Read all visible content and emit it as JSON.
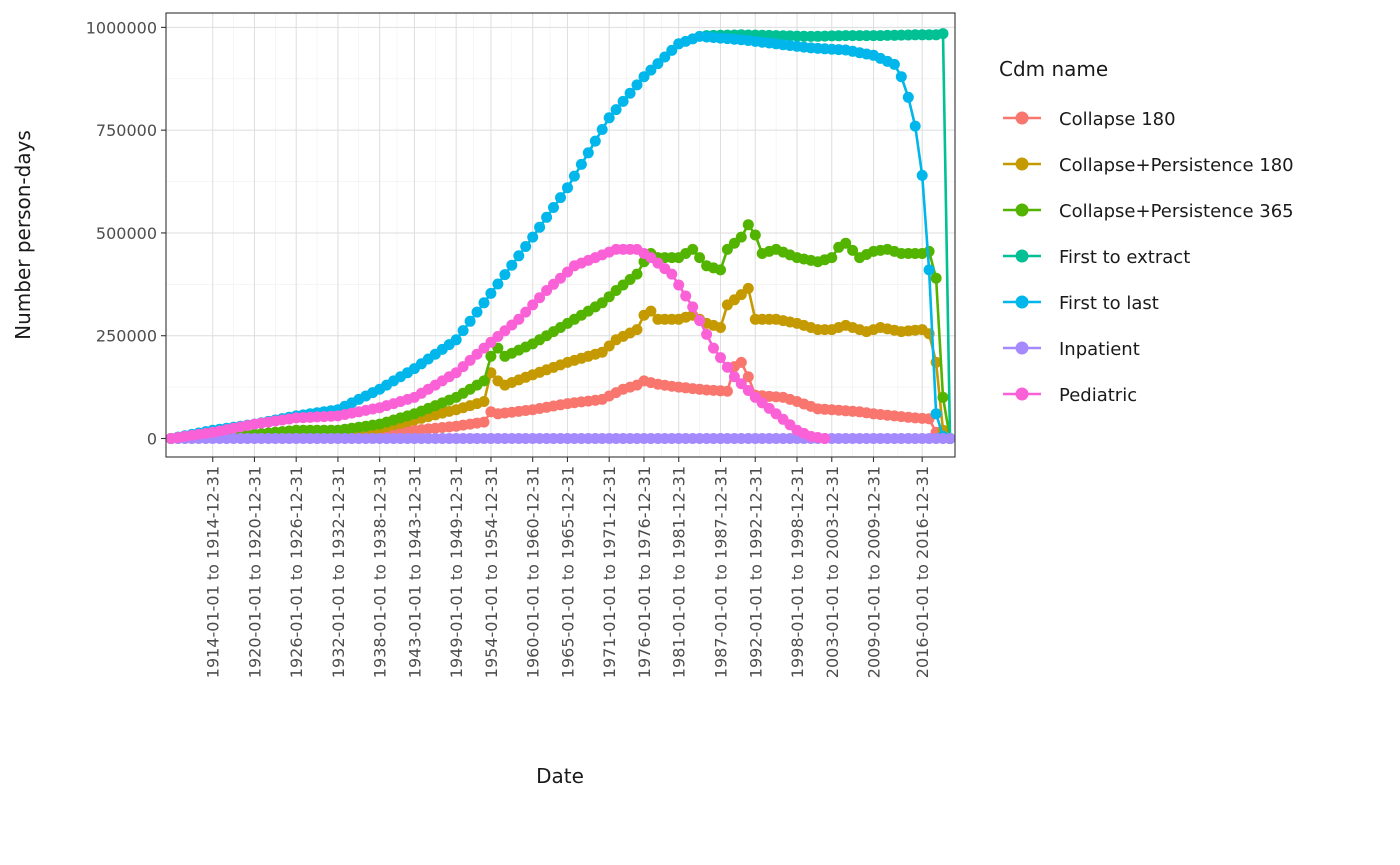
{
  "chart_data": {
    "type": "line",
    "xlabel": "Date",
    "ylabel": "Number person-days",
    "legend_title": "Cdm name",
    "legend_position": "right",
    "grid": true,
    "ylim": [
      -45000,
      1035000
    ],
    "yticks": [
      0,
      250000,
      500000,
      750000,
      1000000
    ],
    "x_tick_labels": [
      "1914-01-01 to 1914-12-31",
      "1920-01-01 to 1920-12-31",
      "1926-01-01 to 1926-12-31",
      "1932-01-01 to 1932-12-31",
      "1938-01-01 to 1938-12-31",
      "1943-01-01 to 1943-12-31",
      "1949-01-01 to 1949-12-31",
      "1954-01-01 to 1954-12-31",
      "1960-01-01 to 1960-12-31",
      "1965-01-01 to 1965-12-31",
      "1971-01-01 to 1971-12-31",
      "1976-01-01 to 1976-12-31",
      "1981-01-01 to 1981-12-31",
      "1987-01-01 to 1987-12-31",
      "1992-01-01 to 1992-12-31",
      "1998-01-01 to 1998-12-31",
      "2003-01-01 to 2003-12-31",
      "2009-01-01 to 2009-12-31",
      "2016-01-01 to 2016-12-31"
    ],
    "x_tick_years": [
      1914,
      1920,
      1926,
      1932,
      1938,
      1943,
      1949,
      1954,
      1960,
      1965,
      1971,
      1976,
      1981,
      1987,
      1992,
      1998,
      2003,
      2009,
      2016
    ],
    "year_start": 1908,
    "year_end": 2020,
    "series": [
      {
        "name": "Collapse 180",
        "color": "#F8766D",
        "keypoints": [
          [
            1908,
            0
          ],
          [
            1920,
            5000
          ],
          [
            1926,
            10000
          ],
          [
            1932,
            12000
          ],
          [
            1938,
            15000
          ],
          [
            1943,
            20000
          ],
          [
            1949,
            30000
          ],
          [
            1953,
            40000
          ],
          [
            1954,
            65000
          ],
          [
            1955,
            60000
          ],
          [
            1960,
            70000
          ],
          [
            1965,
            85000
          ],
          [
            1970,
            95000
          ],
          [
            1973,
            120000
          ],
          [
            1975,
            130000
          ],
          [
            1976,
            140000
          ],
          [
            1978,
            132000
          ],
          [
            1981,
            125000
          ],
          [
            1985,
            118000
          ],
          [
            1988,
            115000
          ],
          [
            1989,
            175000
          ],
          [
            1990,
            185000
          ],
          [
            1991,
            150000
          ],
          [
            1992,
            105000
          ],
          [
            1996,
            100000
          ],
          [
            1998,
            90000
          ],
          [
            2001,
            72000
          ],
          [
            2003,
            70000
          ],
          [
            2007,
            65000
          ],
          [
            2009,
            60000
          ],
          [
            2012,
            55000
          ],
          [
            2015,
            50000
          ],
          [
            2017,
            48000
          ],
          [
            2018,
            15000
          ],
          [
            2019,
            5000
          ],
          [
            2020,
            0
          ]
        ]
      },
      {
        "name": "Collapse+Persistence 180",
        "color": "#C49A00",
        "keypoints": [
          [
            1908,
            0
          ],
          [
            1920,
            8000
          ],
          [
            1926,
            12000
          ],
          [
            1932,
            15000
          ],
          [
            1938,
            25000
          ],
          [
            1943,
            45000
          ],
          [
            1949,
            70000
          ],
          [
            1953,
            90000
          ],
          [
            1954,
            160000
          ],
          [
            1955,
            140000
          ],
          [
            1956,
            130000
          ],
          [
            1960,
            155000
          ],
          [
            1965,
            185000
          ],
          [
            1970,
            210000
          ],
          [
            1972,
            240000
          ],
          [
            1975,
            265000
          ],
          [
            1976,
            300000
          ],
          [
            1977,
            310000
          ],
          [
            1978,
            290000
          ],
          [
            1981,
            290000
          ],
          [
            1983,
            300000
          ],
          [
            1985,
            280000
          ],
          [
            1987,
            270000
          ],
          [
            1988,
            325000
          ],
          [
            1990,
            350000
          ],
          [
            1991,
            365000
          ],
          [
            1992,
            290000
          ],
          [
            1995,
            290000
          ],
          [
            1998,
            280000
          ],
          [
            2001,
            265000
          ],
          [
            2003,
            265000
          ],
          [
            2005,
            275000
          ],
          [
            2008,
            260000
          ],
          [
            2010,
            270000
          ],
          [
            2013,
            260000
          ],
          [
            2016,
            265000
          ],
          [
            2017,
            255000
          ],
          [
            2018,
            185000
          ],
          [
            2019,
            20000
          ],
          [
            2020,
            0
          ]
        ]
      },
      {
        "name": "Collapse+Persistence 365",
        "color": "#53B400",
        "keypoints": [
          [
            1908,
            0
          ],
          [
            1920,
            10000
          ],
          [
            1926,
            20000
          ],
          [
            1932,
            20000
          ],
          [
            1938,
            35000
          ],
          [
            1943,
            60000
          ],
          [
            1949,
            100000
          ],
          [
            1953,
            140000
          ],
          [
            1954,
            200000
          ],
          [
            1955,
            220000
          ],
          [
            1956,
            200000
          ],
          [
            1960,
            230000
          ],
          [
            1965,
            280000
          ],
          [
            1970,
            330000
          ],
          [
            1972,
            360000
          ],
          [
            1975,
            400000
          ],
          [
            1976,
            430000
          ],
          [
            1977,
            450000
          ],
          [
            1978,
            440000
          ],
          [
            1981,
            440000
          ],
          [
            1983,
            460000
          ],
          [
            1985,
            420000
          ],
          [
            1987,
            410000
          ],
          [
            1988,
            460000
          ],
          [
            1990,
            490000
          ],
          [
            1991,
            520000
          ],
          [
            1992,
            495000
          ],
          [
            1993,
            450000
          ],
          [
            1995,
            460000
          ],
          [
            1998,
            440000
          ],
          [
            2001,
            430000
          ],
          [
            2003,
            440000
          ],
          [
            2004,
            465000
          ],
          [
            2005,
            475000
          ],
          [
            2007,
            440000
          ],
          [
            2009,
            455000
          ],
          [
            2011,
            460000
          ],
          [
            2013,
            450000
          ],
          [
            2016,
            450000
          ],
          [
            2017,
            455000
          ],
          [
            2018,
            390000
          ],
          [
            2019,
            100000
          ],
          [
            2020,
            0
          ]
        ]
      },
      {
        "name": "First to extract",
        "color": "#00C094",
        "keypoints": [
          [
            1985,
            980000
          ],
          [
            1990,
            982000
          ],
          [
            1995,
            980000
          ],
          [
            2000,
            978000
          ],
          [
            2005,
            980000
          ],
          [
            2010,
            980000
          ],
          [
            2015,
            982000
          ],
          [
            2018,
            982000
          ],
          [
            2019,
            985000
          ],
          [
            2020,
            0
          ]
        ]
      },
      {
        "name": "First to last",
        "color": "#00B6EB",
        "keypoints": [
          [
            1908,
            0
          ],
          [
            1914,
            20000
          ],
          [
            1920,
            35000
          ],
          [
            1926,
            55000
          ],
          [
            1932,
            70000
          ],
          [
            1938,
            120000
          ],
          [
            1943,
            170000
          ],
          [
            1949,
            240000
          ],
          [
            1953,
            330000
          ],
          [
            1960,
            490000
          ],
          [
            1965,
            610000
          ],
          [
            1971,
            780000
          ],
          [
            1976,
            880000
          ],
          [
            1981,
            960000
          ],
          [
            1984,
            978000
          ],
          [
            1990,
            970000
          ],
          [
            1995,
            960000
          ],
          [
            2000,
            950000
          ],
          [
            2005,
            945000
          ],
          [
            2009,
            932000
          ],
          [
            2012,
            910000
          ],
          [
            2013,
            880000
          ],
          [
            2014,
            830000
          ],
          [
            2015,
            760000
          ],
          [
            2016,
            640000
          ],
          [
            2017,
            410000
          ],
          [
            2018,
            60000
          ],
          [
            2019,
            5000
          ],
          [
            2020,
            0
          ]
        ]
      },
      {
        "name": "Inpatient",
        "color": "#A58AFF",
        "keypoints": [
          [
            1908,
            0
          ],
          [
            2020,
            0
          ]
        ]
      },
      {
        "name": "Pediatric",
        "color": "#FB61D7",
        "keypoints": [
          [
            1908,
            0
          ],
          [
            1914,
            15000
          ],
          [
            1920,
            35000
          ],
          [
            1926,
            50000
          ],
          [
            1932,
            55000
          ],
          [
            1938,
            75000
          ],
          [
            1943,
            100000
          ],
          [
            1949,
            160000
          ],
          [
            1953,
            220000
          ],
          [
            1958,
            290000
          ],
          [
            1962,
            360000
          ],
          [
            1966,
            420000
          ],
          [
            1969,
            440000
          ],
          [
            1972,
            460000
          ],
          [
            1975,
            460000
          ],
          [
            1977,
            440000
          ],
          [
            1980,
            400000
          ],
          [
            1983,
            320000
          ],
          [
            1986,
            220000
          ],
          [
            1989,
            150000
          ],
          [
            1992,
            100000
          ],
          [
            1995,
            60000
          ],
          [
            1998,
            20000
          ],
          [
            2000,
            5000
          ],
          [
            2002,
            0
          ]
        ]
      }
    ]
  }
}
